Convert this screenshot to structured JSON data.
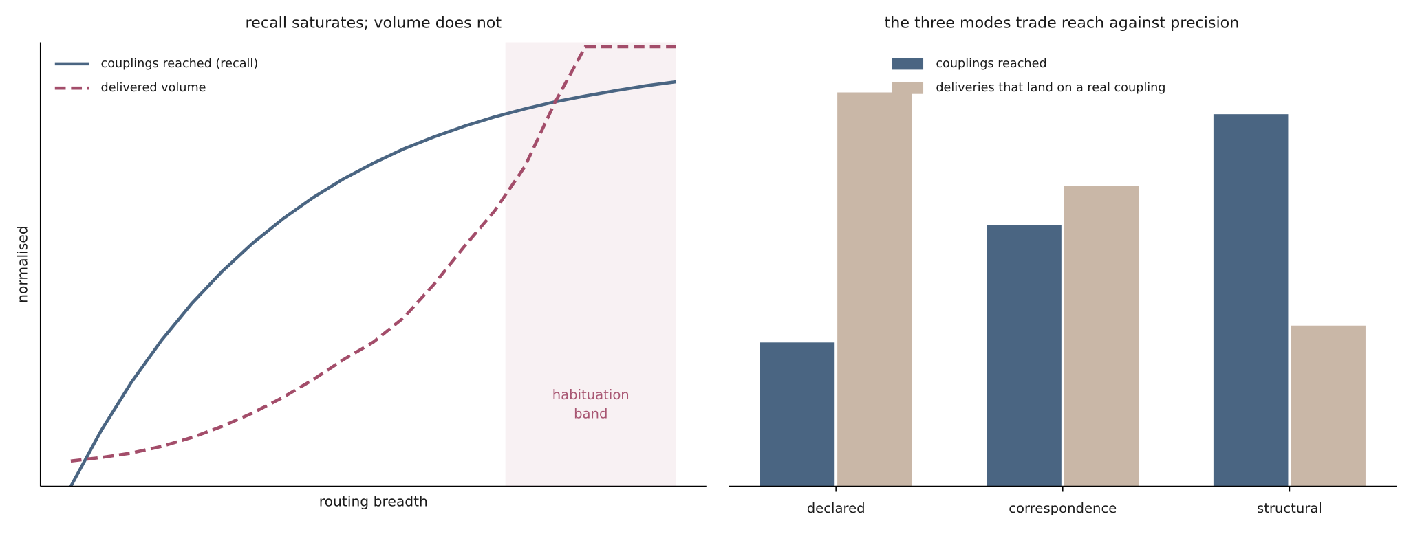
{
  "chart_data": [
    {
      "type": "line",
      "title": "recall saturates; volume does not",
      "x_label": "routing breadth",
      "y_label": "normalised",
      "x": [
        0,
        0.05,
        0.1,
        0.15,
        0.2,
        0.25,
        0.3,
        0.35,
        0.4,
        0.45,
        0.5,
        0.55,
        0.6,
        0.65,
        0.7,
        0.75,
        0.8,
        0.85,
        0.9,
        0.95,
        1.0
      ],
      "xlim": [
        -0.05,
        1.05
      ],
      "ylim": [
        0,
        1
      ],
      "series": [
        {
          "name": "couplings reached (recall)",
          "color": "#4a6582",
          "style": "solid",
          "values": [
            0,
            0.125,
            0.234,
            0.329,
            0.412,
            0.484,
            0.547,
            0.602,
            0.65,
            0.692,
            0.728,
            0.76,
            0.787,
            0.811,
            0.832,
            0.85,
            0.866,
            0.879,
            0.891,
            0.902,
            0.911
          ]
        },
        {
          "name": "delivered volume",
          "color": "#a34d6a",
          "style": "dashed",
          "values": [
            0.057,
            0.065,
            0.075,
            0.09,
            0.11,
            0.135,
            0.165,
            0.2,
            0.24,
            0.285,
            0.325,
            0.38,
            0.455,
            0.54,
            0.62,
            0.72,
            0.865,
            0.99,
            0.99,
            0.99,
            0.99
          ]
        }
      ],
      "legend": "upper left",
      "band": {
        "range": [
          0.718,
          1.0
        ],
        "color": "#a34d6a",
        "label": [
          "habituation",
          "band"
        ]
      }
    },
    {
      "type": "bar",
      "title": "the three modes trade reach against precision",
      "categories": [
        "declared",
        "correspondence",
        "structural"
      ],
      "ylim": [
        0,
        1
      ],
      "series": [
        {
          "name": "couplings reached",
          "color": "#4a6582",
          "values": [
            0.324,
            0.589,
            0.838
          ]
        },
        {
          "name": "deliveries that land on a real coupling",
          "color": "#c9b7a7",
          "values": [
            0.887,
            0.676,
            0.362
          ]
        }
      ],
      "legend": "upper center"
    }
  ]
}
